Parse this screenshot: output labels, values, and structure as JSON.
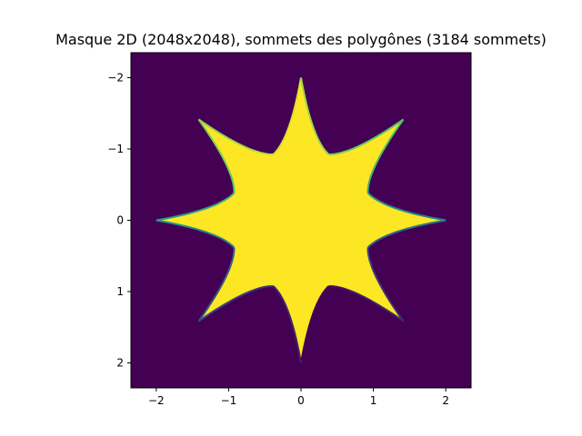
{
  "chart_data": {
    "type": "heatmap",
    "title": "Masque 2D (2048x2048), sommets des polygônes (3184 sommets)",
    "xlabel": "",
    "ylabel": "",
    "xlim": [
      -2.35,
      2.35
    ],
    "ylim": [
      -2.35,
      2.35
    ],
    "y_inverted": true,
    "grid": false,
    "legend": "none",
    "x_ticks": [
      {
        "value": -2,
        "label": "−2"
      },
      {
        "value": -1,
        "label": "−1"
      },
      {
        "value": 0,
        "label": "0"
      },
      {
        "value": 1,
        "label": "1"
      },
      {
        "value": 2,
        "label": "2"
      }
    ],
    "y_ticks": [
      {
        "value": -2,
        "label": "−2"
      },
      {
        "value": -1,
        "label": "−1"
      },
      {
        "value": 0,
        "label": "0"
      },
      {
        "value": 1,
        "label": "1"
      },
      {
        "value": 2,
        "label": "2"
      }
    ],
    "mask_values": {
      "outside": 0,
      "inside": 1
    },
    "shape": {
      "kind": "star",
      "petals": 8,
      "outer_radius": 2.0,
      "inner_radius": 1.0,
      "first_tip_angle_deg": 0
    },
    "vertex_count": 3184,
    "colors": {
      "background": "#440154",
      "fill": "#fde725",
      "contour_colormap": [
        "#440154",
        "#3b528b",
        "#21918c",
        "#5ec962",
        "#fde725"
      ]
    }
  }
}
